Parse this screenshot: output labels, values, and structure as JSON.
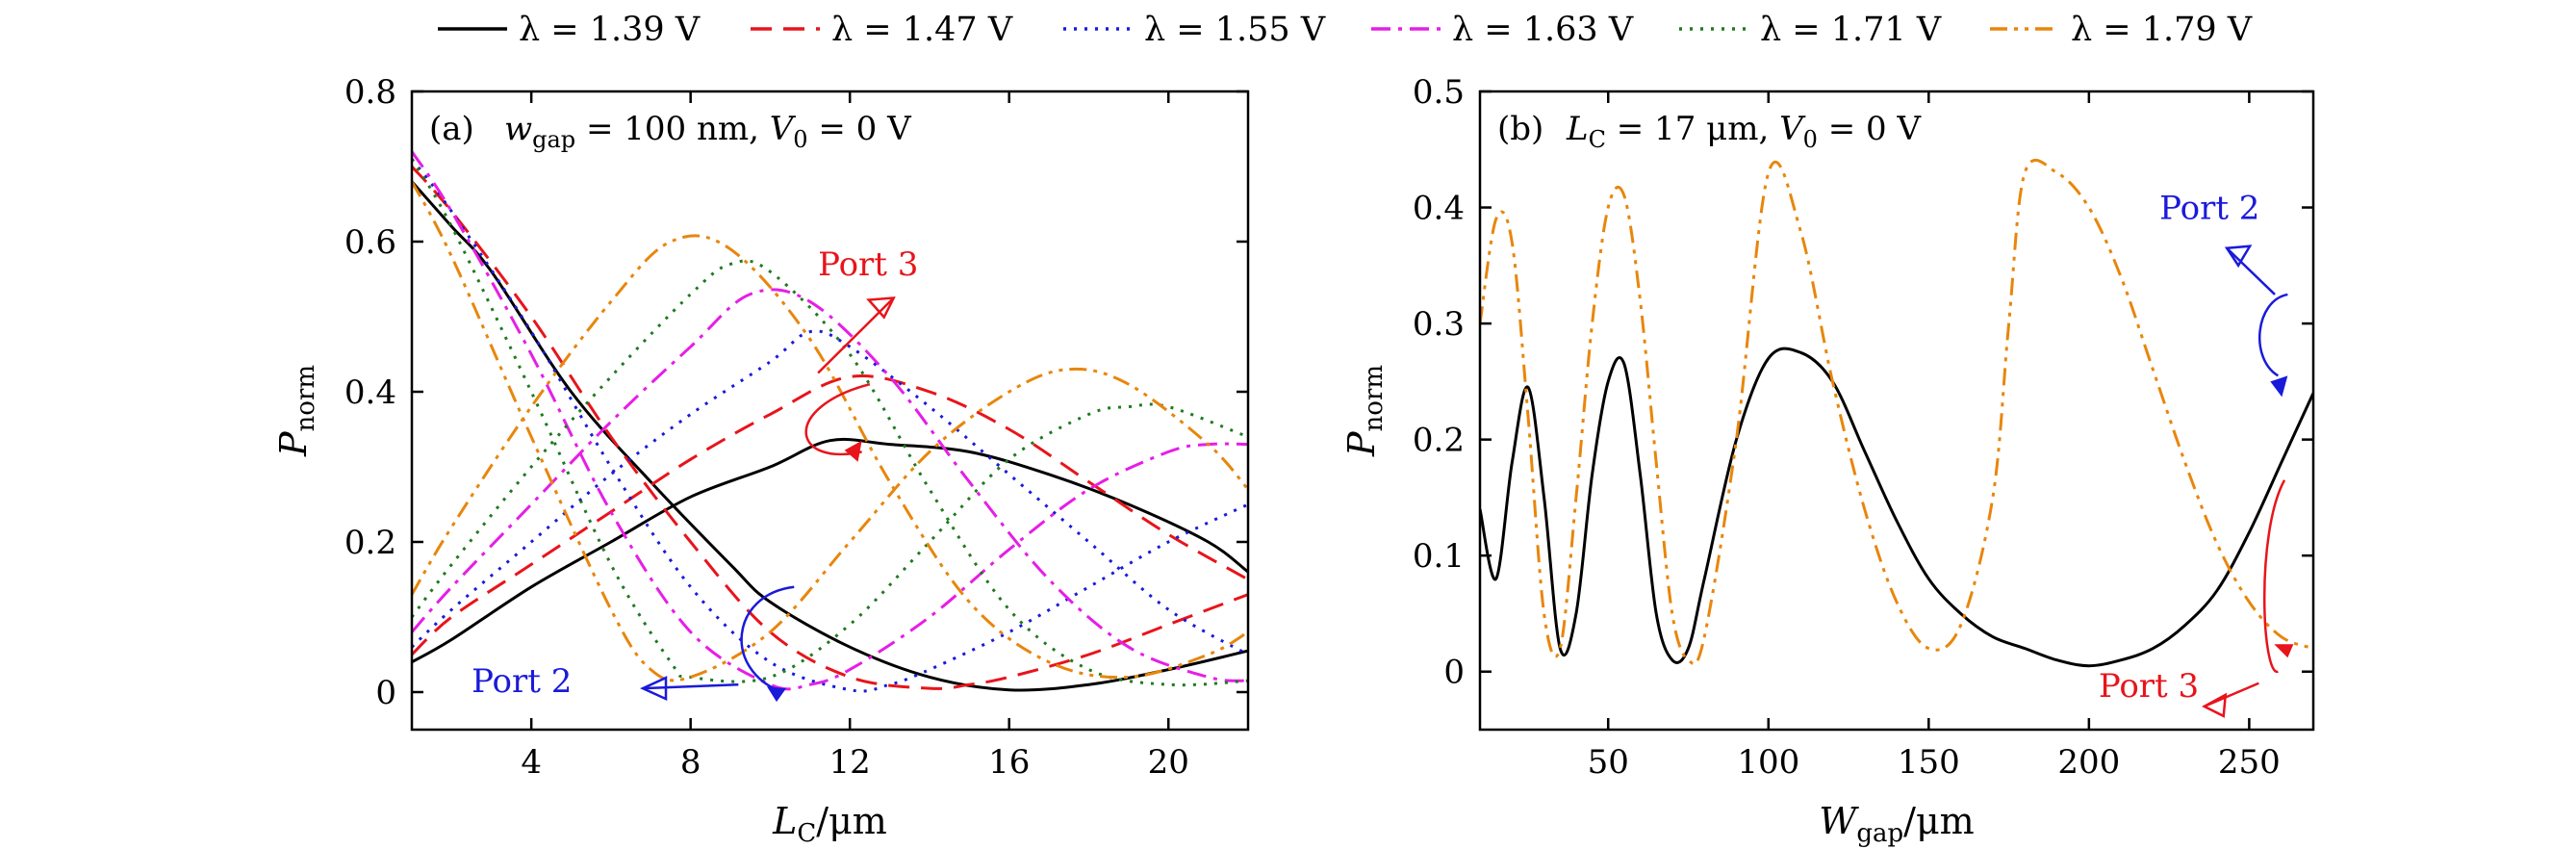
{
  "legend": [
    {
      "name": "λ = 1.39 V",
      "color": "#000000",
      "dash": "solid"
    },
    {
      "name": "λ = 1.47 V",
      "color": "#e8141b",
      "dash": "dash"
    },
    {
      "name": "λ = 1.55 V",
      "color": "#1a1adb",
      "dash": "dot"
    },
    {
      "name": "λ = 1.63 V",
      "color": "#e61ee6",
      "dash": "dashdot"
    },
    {
      "name": "λ = 1.71 V",
      "color": "#1f7a1f",
      "dash": "dot"
    },
    {
      "name": "λ = 1.79 V",
      "color": "#e8860c",
      "dash": "dashdotdot"
    }
  ],
  "chart_data": [
    {
      "type": "line",
      "panel_label": "(a)",
      "annotation": "w_gap = 100 nm, V_0 = 0 V",
      "xlabel": "L_C/μm",
      "ylabel": "P_norm",
      "xlim": [
        1,
        22
      ],
      "ylim": [
        -0.05,
        0.8
      ],
      "xticks": [
        4,
        8,
        12,
        16,
        20
      ],
      "yticks": [
        0,
        0.2,
        0.4,
        0.6,
        0.8
      ],
      "ytick_labels": [
        "0",
        "0.2",
        "0.4",
        "0.6",
        "0.8"
      ],
      "port_labels": [
        {
          "text": "Port 3",
          "color": "#e8141b"
        },
        {
          "text": "Port 2",
          "color": "#1a1adb"
        }
      ],
      "series": [
        {
          "name": "λ = 1.39 V",
          "port": 3,
          "x": [
            1,
            2,
            4,
            6,
            8,
            10,
            11.5,
            13,
            15,
            17,
            19,
            21,
            22
          ],
          "values": [
            0.04,
            0.07,
            0.14,
            0.2,
            0.26,
            0.3,
            0.335,
            0.33,
            0.32,
            0.29,
            0.25,
            0.2,
            0.16
          ]
        },
        {
          "name": "λ = 1.39 V",
          "port": 2,
          "x": [
            1,
            2,
            3,
            5,
            7,
            9,
            10,
            12,
            14,
            16,
            18,
            20,
            22
          ],
          "values": [
            0.68,
            0.62,
            0.56,
            0.4,
            0.28,
            0.17,
            0.12,
            0.06,
            0.02,
            0.003,
            0.01,
            0.03,
            0.055
          ]
        },
        {
          "name": "λ = 1.47 V",
          "port": 3,
          "x": [
            1,
            2,
            4,
            6,
            8,
            10,
            12,
            14,
            16,
            18,
            20,
            22
          ],
          "values": [
            0.05,
            0.1,
            0.17,
            0.24,
            0.31,
            0.37,
            0.42,
            0.4,
            0.35,
            0.28,
            0.21,
            0.15
          ]
        },
        {
          "name": "λ = 1.47 V",
          "port": 2,
          "x": [
            1,
            2,
            4,
            6,
            8,
            10,
            12,
            14,
            15,
            16,
            18,
            20,
            22
          ],
          "values": [
            0.7,
            0.64,
            0.5,
            0.34,
            0.2,
            0.08,
            0.02,
            0.005,
            0.01,
            0.02,
            0.05,
            0.09,
            0.13
          ]
        },
        {
          "name": "λ = 1.55 V",
          "port": 3,
          "x": [
            1,
            2,
            4,
            6,
            8,
            10,
            11,
            12,
            14,
            16,
            18,
            20,
            22
          ],
          "values": [
            0.06,
            0.11,
            0.2,
            0.29,
            0.37,
            0.44,
            0.48,
            0.46,
            0.38,
            0.29,
            0.2,
            0.11,
            0.05
          ]
        },
        {
          "name": "λ = 1.55 V",
          "port": 2,
          "x": [
            1,
            2,
            4,
            6,
            8,
            10,
            12,
            13,
            14,
            16,
            18,
            20,
            22
          ],
          "values": [
            0.71,
            0.64,
            0.48,
            0.3,
            0.14,
            0.04,
            0.003,
            0.01,
            0.03,
            0.08,
            0.14,
            0.2,
            0.25
          ]
        },
        {
          "name": "λ = 1.63 V",
          "port": 3,
          "x": [
            1,
            2,
            4,
            6,
            8,
            9.5,
            11,
            13,
            15,
            17,
            19,
            21,
            22
          ],
          "values": [
            0.08,
            0.14,
            0.25,
            0.36,
            0.46,
            0.53,
            0.52,
            0.42,
            0.28,
            0.15,
            0.06,
            0.02,
            0.015
          ]
        },
        {
          "name": "λ = 1.63 V",
          "port": 2,
          "x": [
            1,
            2,
            4,
            6,
            8,
            10,
            11,
            12,
            14,
            16,
            18,
            20,
            21,
            22
          ],
          "values": [
            0.72,
            0.64,
            0.45,
            0.24,
            0.08,
            0.01,
            0.01,
            0.03,
            0.1,
            0.19,
            0.27,
            0.32,
            0.33,
            0.33
          ]
        },
        {
          "name": "λ = 1.71 V",
          "port": 3,
          "x": [
            1,
            2,
            4,
            6,
            8,
            9,
            10,
            12,
            14,
            16,
            18,
            20,
            22
          ],
          "values": [
            0.1,
            0.17,
            0.3,
            0.42,
            0.53,
            0.57,
            0.56,
            0.45,
            0.27,
            0.11,
            0.03,
            0.01,
            0.015
          ]
        },
        {
          "name": "λ = 1.71 V",
          "port": 2,
          "x": [
            1,
            2,
            4,
            6,
            7.5,
            8,
            10,
            12,
            14,
            16,
            18,
            19,
            20,
            22
          ],
          "values": [
            0.71,
            0.62,
            0.4,
            0.17,
            0.04,
            0.02,
            0.02,
            0.09,
            0.2,
            0.31,
            0.37,
            0.38,
            0.38,
            0.34
          ]
        },
        {
          "name": "λ = 1.79 V",
          "port": 3,
          "x": [
            1,
            2,
            4,
            6,
            7.5,
            9,
            11,
            13,
            15,
            17,
            19,
            21,
            22
          ],
          "values": [
            0.13,
            0.22,
            0.38,
            0.52,
            0.6,
            0.59,
            0.47,
            0.28,
            0.12,
            0.04,
            0.02,
            0.05,
            0.08
          ]
        },
        {
          "name": "λ = 1.79 V",
          "port": 2,
          "x": [
            1,
            2,
            4,
            6,
            7,
            8,
            10,
            12,
            14,
            16,
            17.5,
            19,
            21,
            22
          ],
          "values": [
            0.68,
            0.58,
            0.34,
            0.11,
            0.03,
            0.02,
            0.08,
            0.2,
            0.32,
            0.4,
            0.43,
            0.41,
            0.33,
            0.27
          ]
        }
      ]
    },
    {
      "type": "line",
      "panel_label": "(b)",
      "annotation": "L_C = 17 μm, V_0 = 0 V",
      "xlabel": "W_gap/μm",
      "ylabel": "P_norm",
      "xlim": [
        10,
        270
      ],
      "ylim": [
        -0.05,
        0.5
      ],
      "xticks": [
        50,
        100,
        150,
        200,
        250
      ],
      "yticks": [
        0,
        0.1,
        0.2,
        0.3,
        0.4,
        0.5
      ],
      "ytick_labels": [
        "0",
        "0.1",
        "0.2",
        "0.3",
        "0.4",
        "0.5"
      ],
      "port_labels": [
        {
          "text": "Port 2",
          "color": "#1a1adb"
        },
        {
          "text": "Port 3",
          "color": "#e8141b"
        }
      ],
      "series": [
        {
          "name": "λ = 1.39 V",
          "x": [
            10,
            15,
            20,
            25,
            30,
            35,
            40,
            45,
            50,
            55,
            60,
            65,
            70,
            75,
            80,
            90,
            100,
            110,
            120,
            130,
            140,
            150,
            160,
            170,
            180,
            190,
            200,
            210,
            220,
            230,
            240,
            250,
            260,
            270
          ],
          "values": [
            0.14,
            0.08,
            0.18,
            0.245,
            0.15,
            0.02,
            0.05,
            0.17,
            0.25,
            0.265,
            0.17,
            0.05,
            0.01,
            0.02,
            0.08,
            0.2,
            0.27,
            0.275,
            0.25,
            0.19,
            0.13,
            0.08,
            0.05,
            0.03,
            0.02,
            0.01,
            0.005,
            0.01,
            0.02,
            0.04,
            0.07,
            0.12,
            0.18,
            0.24
          ]
        },
        {
          "name": "λ = 1.79 V",
          "x": [
            10,
            15,
            20,
            25,
            30,
            35,
            40,
            45,
            50,
            55,
            60,
            65,
            70,
            75,
            80,
            90,
            100,
            110,
            120,
            130,
            140,
            150,
            160,
            170,
            175,
            180,
            190,
            200,
            210,
            220,
            230,
            240,
            250,
            260,
            270
          ],
          "values": [
            0.3,
            0.39,
            0.37,
            0.22,
            0.05,
            0.02,
            0.15,
            0.3,
            0.4,
            0.41,
            0.32,
            0.18,
            0.05,
            0.01,
            0.03,
            0.2,
            0.43,
            0.38,
            0.25,
            0.14,
            0.06,
            0.02,
            0.04,
            0.15,
            0.3,
            0.43,
            0.43,
            0.4,
            0.34,
            0.26,
            0.18,
            0.11,
            0.06,
            0.03,
            0.02
          ]
        }
      ]
    }
  ]
}
